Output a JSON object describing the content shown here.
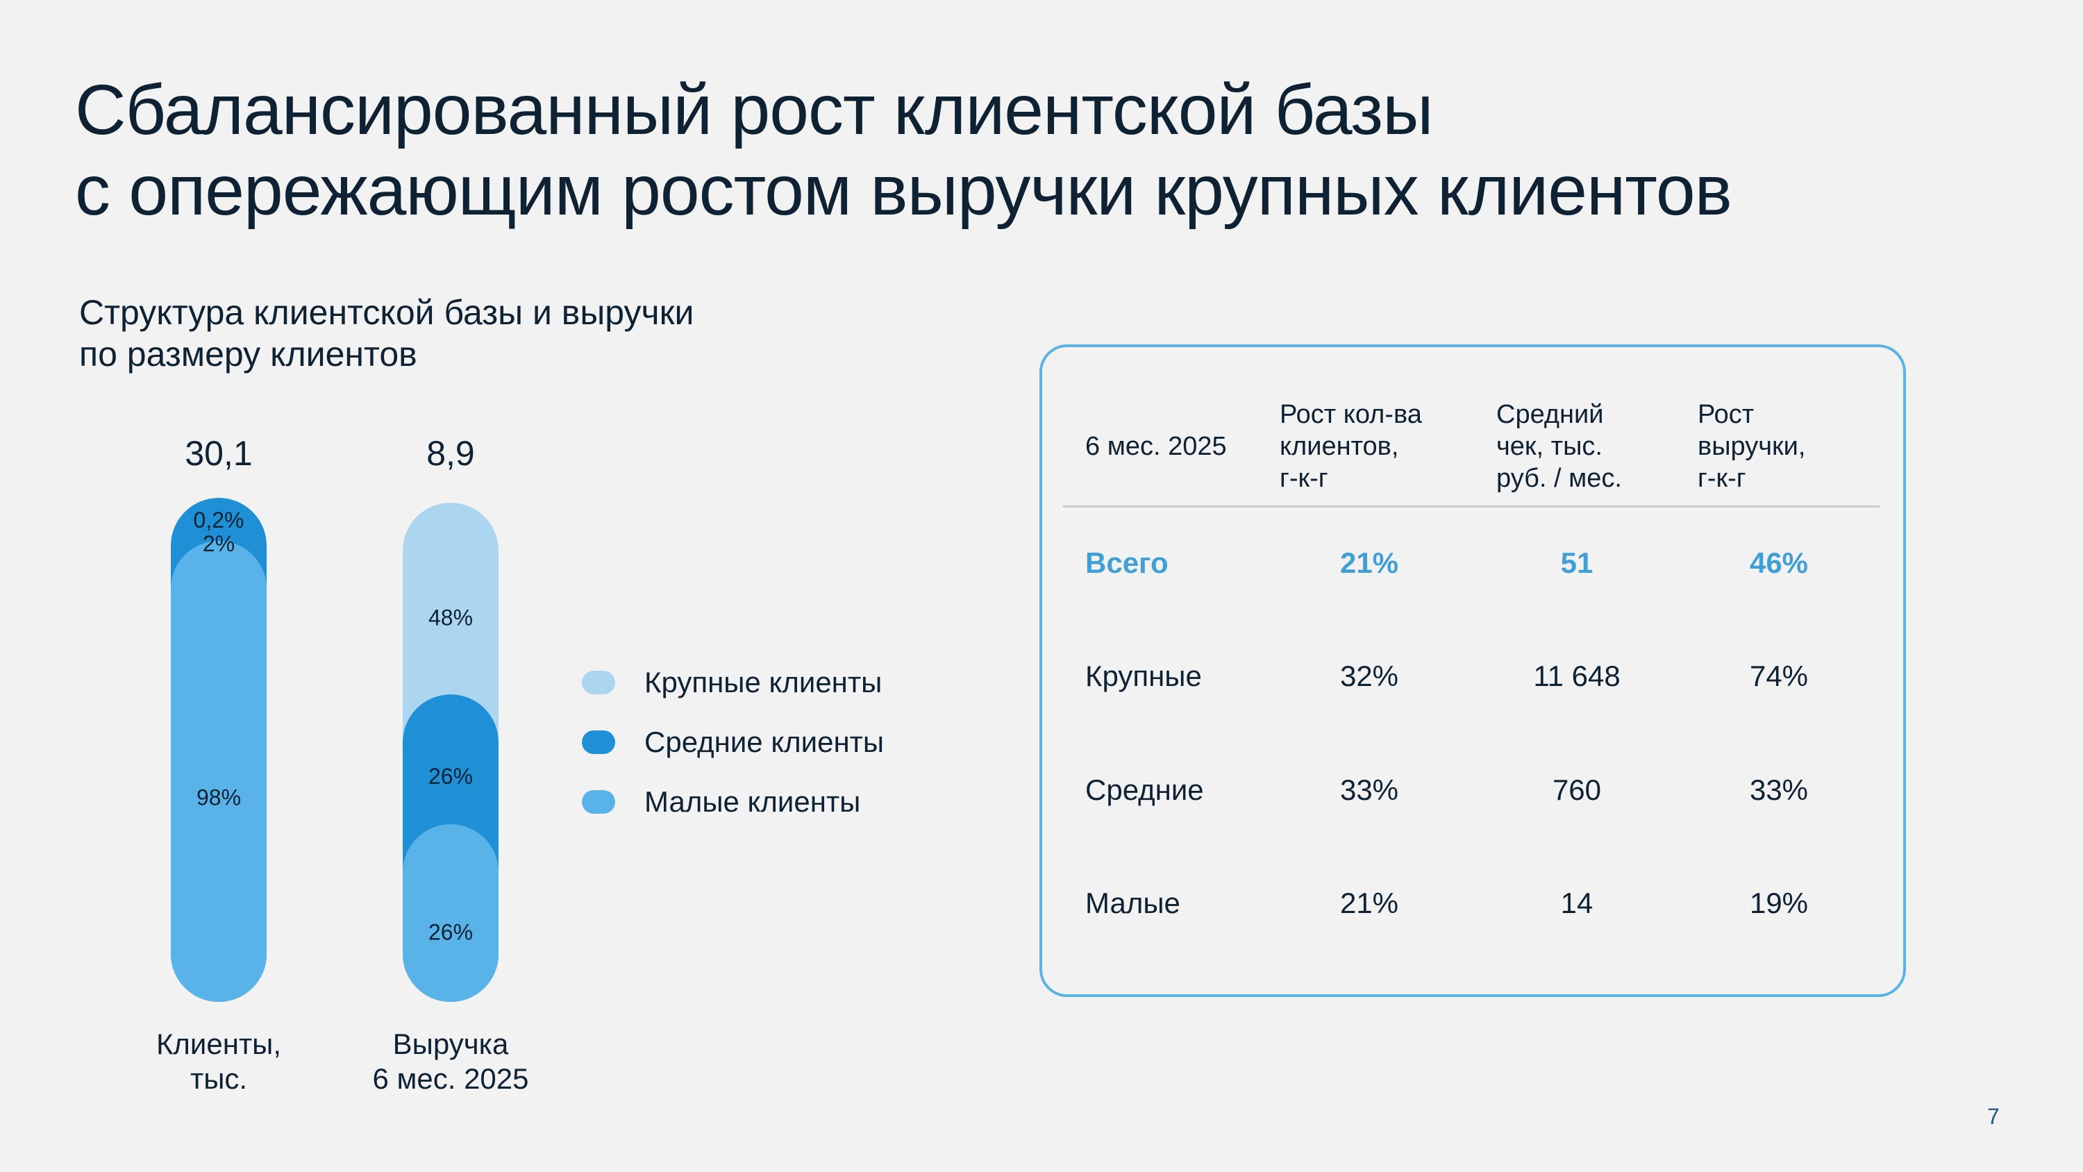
{
  "slide": {
    "title_lines": [
      "Сбалансированный рост клиентской базы",
      "с опережающим ростом выручки крупных клиентов"
    ],
    "subtitle_lines": [
      "Структура клиентской базы и выручки",
      "по размеру клиентов"
    ],
    "page_number": "7"
  },
  "colors": {
    "large": "#acd5f0",
    "medium": "#1f8fd6",
    "small": "#5ab3e8",
    "accent": "#3f9fd6",
    "card_border": "#5ab3e2"
  },
  "chart_data": {
    "type": "bar",
    "stacked": true,
    "normalized": true,
    "categories": [
      "Клиенты,\nтыс.",
      "Выручка\n6 мес. 2025"
    ],
    "category_label_lines": [
      [
        "Клиенты,",
        "тыс."
      ],
      [
        "Выручка",
        "6 мес. 2025"
      ]
    ],
    "totals": [
      "30,1",
      "8,9"
    ],
    "series": [
      {
        "name": "Крупные клиенты",
        "values": [
          0.2,
          48
        ],
        "labels": [
          "0,2%",
          "48%"
        ]
      },
      {
        "name": "Средние клиенты",
        "values": [
          2,
          26
        ],
        "labels": [
          "2%",
          "26%"
        ]
      },
      {
        "name": "Малые клиенты",
        "values": [
          98,
          26
        ],
        "labels": [
          "98%",
          "26%"
        ]
      }
    ],
    "unit": "%",
    "legend_position": "right"
  },
  "table": {
    "headers": {
      "period": "6 мес. 2025",
      "col1": [
        "Рост кол-ва",
        "клиентов,",
        "г-к-г"
      ],
      "col2": [
        "Средний",
        "чек, тыс.",
        "руб. / мес."
      ],
      "col3": [
        "Рост",
        "выручки,",
        "г-к-г"
      ]
    },
    "rows": [
      {
        "label": "Всего",
        "col1": "21%",
        "col2": "51",
        "col3": "46%"
      },
      {
        "label": "Крупные",
        "col1": "32%",
        "col2": "11 648",
        "col3": "74%"
      },
      {
        "label": "Средние",
        "col1": "33%",
        "col2": "760",
        "col3": "33%"
      },
      {
        "label": "Малые",
        "col1": "21%",
        "col2": "14",
        "col3": "19%"
      }
    ]
  }
}
